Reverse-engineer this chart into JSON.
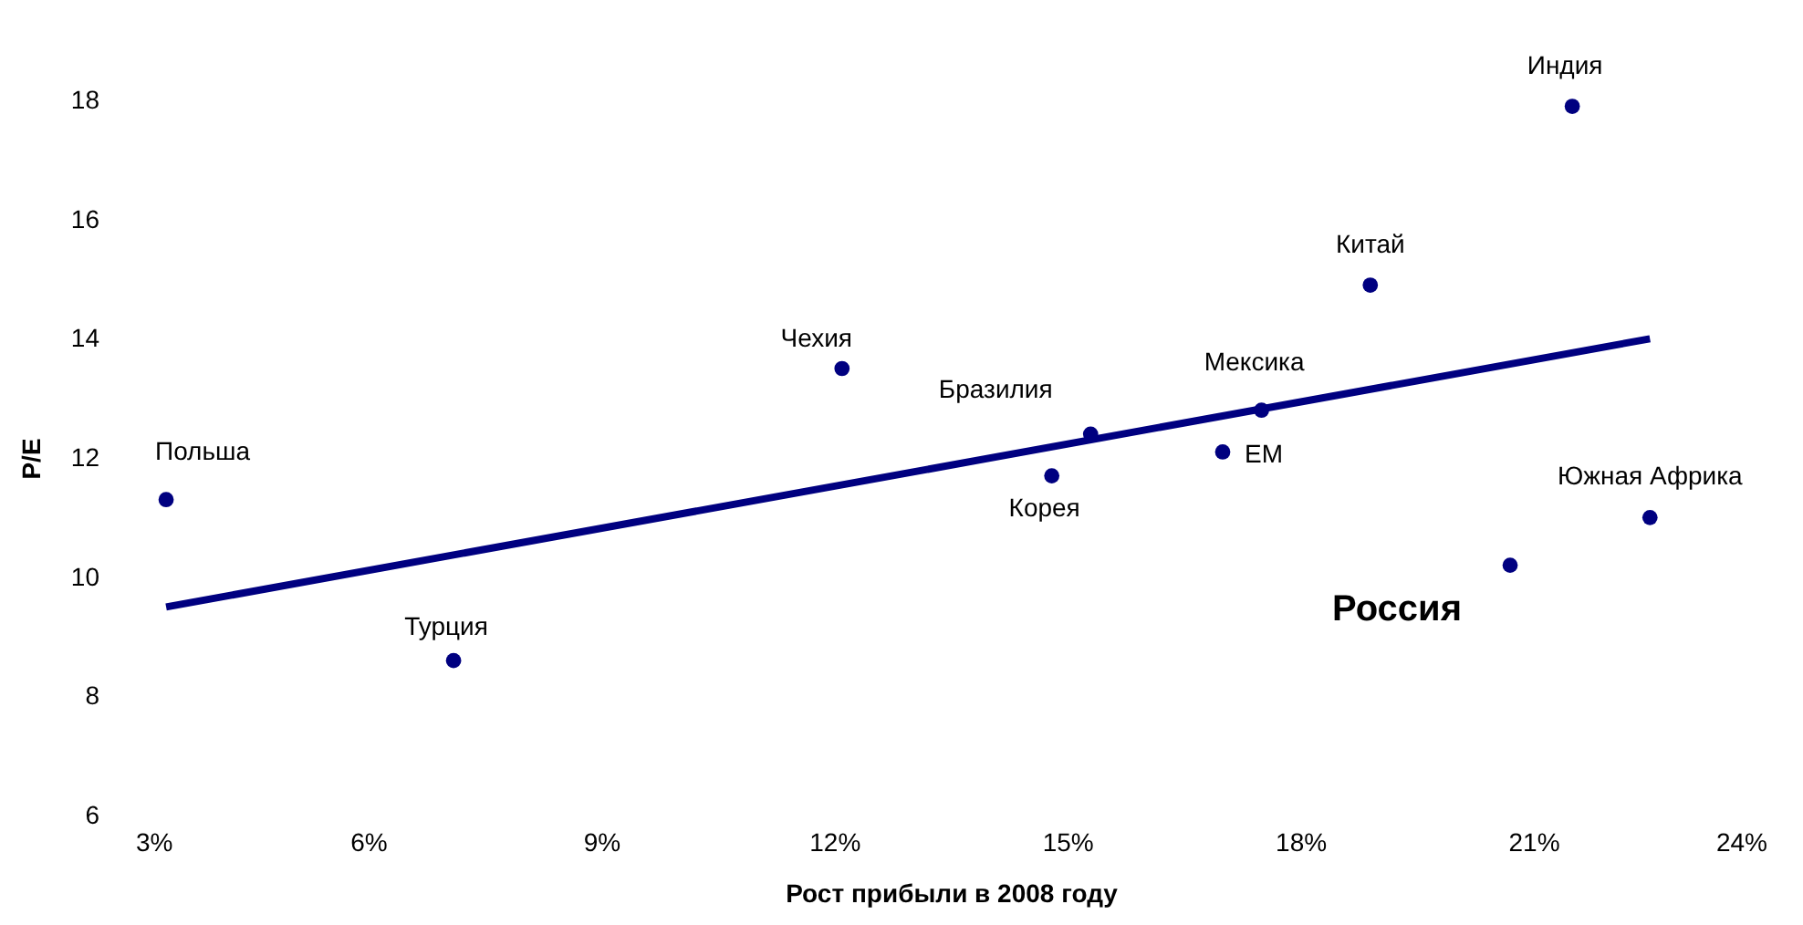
{
  "chart_data": {
    "type": "scatter",
    "xlabel": "Рост прибыли в 2008 году",
    "ylabel": "P/E",
    "xlim": [
      3,
      24
    ],
    "ylim": [
      6,
      18
    ],
    "xticks": [
      {
        "value": 3,
        "label": "3%"
      },
      {
        "value": 6,
        "label": "6%"
      },
      {
        "value": 9,
        "label": "9%"
      },
      {
        "value": 12,
        "label": "12%"
      },
      {
        "value": 15,
        "label": "15%"
      },
      {
        "value": 18,
        "label": "18%"
      },
      {
        "value": 21,
        "label": "21%"
      },
      {
        "value": 24,
        "label": "24%"
      }
    ],
    "yticks": [
      6,
      8,
      10,
      12,
      14,
      16,
      18
    ],
    "grid": false,
    "marker": "circle",
    "series": [
      {
        "type": "line",
        "color": "#000080",
        "x": [
          3.4,
          22.5
        ],
        "values": [
          9.5,
          14.0
        ],
        "line_style": "solid",
        "marker": "none"
      },
      {
        "name": "Польша",
        "color": "#000080",
        "x": [
          3.4
        ],
        "values": [
          11.3
        ]
      },
      {
        "name": "Турция",
        "color": "#000080",
        "x": [
          7.1
        ],
        "values": [
          8.6
        ]
      },
      {
        "name": "Чехия",
        "color": "#000080",
        "x": [
          12.1
        ],
        "values": [
          13.5
        ]
      },
      {
        "name": "Корея",
        "color": "#000080",
        "x": [
          14.8
        ],
        "values": [
          11.7
        ]
      },
      {
        "name": "Бразилия",
        "color": "#000080",
        "x": [
          15.3
        ],
        "values": [
          12.4
        ]
      },
      {
        "name": "EM",
        "color": "#000080",
        "x": [
          17.0
        ],
        "values": [
          12.1
        ]
      },
      {
        "name": "Мексика",
        "color": "#000080",
        "x": [
          17.5
        ],
        "values": [
          12.8
        ]
      },
      {
        "name": "Китай",
        "color": "#000080",
        "x": [
          18.9
        ],
        "values": [
          14.9
        ]
      },
      {
        "name": "Индия",
        "color": "#000080",
        "x": [
          21.5
        ],
        "values": [
          17.9
        ]
      },
      {
        "name": "Россия",
        "color": "#000080",
        "x": [
          20.7
        ],
        "values": [
          10.2
        ]
      },
      {
        "name": "Южная Африка",
        "color": "#000080",
        "x": [
          22.5
        ],
        "values": [
          11.0
        ]
      }
    ]
  }
}
